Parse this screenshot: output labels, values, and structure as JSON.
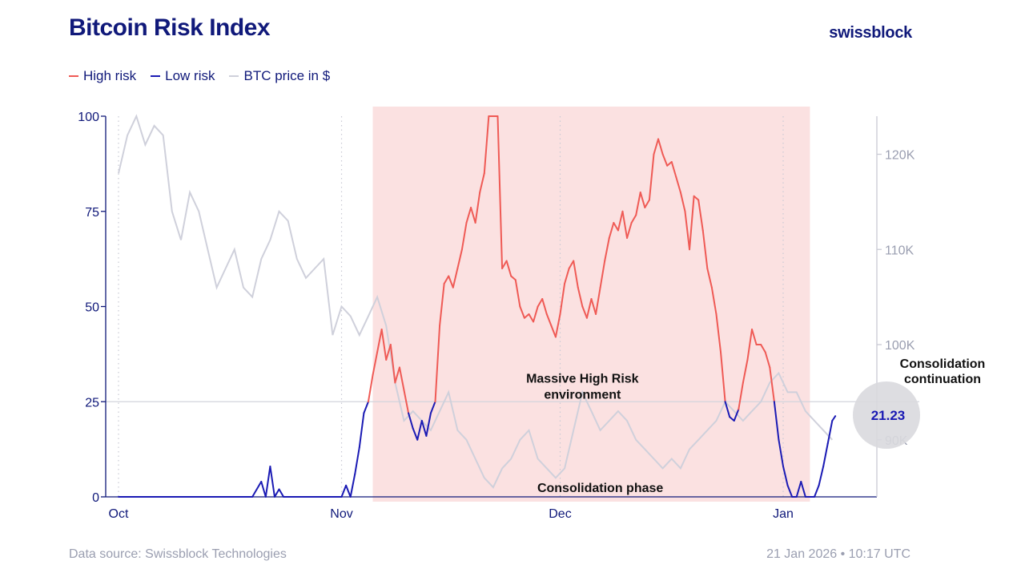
{
  "page": {
    "title": "Bitcoin Risk Index",
    "brand": "swissblock",
    "footer_source": "Data source: Swissblock Technologies",
    "footer_timestamp": "21 Jan 2026 • 10:17 UTC"
  },
  "colors": {
    "title": "#10197a",
    "high_risk": "#ef5a55",
    "low_risk": "#1a1ab4",
    "btc_price": "#cfd0db",
    "highlight_band": "#fbe1e1",
    "right_axis": "#9a9eb0",
    "value_bubble": "#d9d9de"
  },
  "chart_data": {
    "type": "line",
    "title": "Bitcoin Risk Index",
    "legend": {
      "placement": "top-left",
      "entries": [
        "High risk",
        "Low risk",
        "BTC price in $"
      ]
    },
    "x_ticks": [
      "Oct",
      "Nov",
      "Dec",
      "Jan"
    ],
    "y_left": {
      "range": [
        0,
        100
      ],
      "ticks": [
        "0",
        "25",
        "50",
        "75",
        "100"
      ]
    },
    "y_right": {
      "range": [
        84000,
        124000
      ],
      "ticks": [
        "90K",
        "100K",
        "110K",
        "120K"
      ]
    },
    "threshold": 25,
    "series": [
      {
        "name": "Bitcoin Risk Index",
        "points": [
          [
            0,
            0
          ],
          [
            5,
            0
          ],
          [
            10,
            0
          ],
          [
            15,
            0
          ],
          [
            20,
            0
          ],
          [
            25,
            0
          ],
          [
            30,
            0
          ],
          [
            32,
            4
          ],
          [
            33,
            0
          ],
          [
            34,
            8
          ],
          [
            35,
            0
          ],
          [
            36,
            2
          ],
          [
            37,
            0
          ],
          [
            40,
            0
          ],
          [
            45,
            0
          ],
          [
            50,
            0
          ],
          [
            51,
            3
          ],
          [
            52,
            0
          ],
          [
            53,
            6
          ],
          [
            54,
            13
          ],
          [
            55,
            22
          ],
          [
            56,
            25
          ],
          [
            57,
            32
          ],
          [
            58,
            38
          ],
          [
            59,
            44
          ],
          [
            60,
            36
          ],
          [
            61,
            40
          ],
          [
            62,
            30
          ],
          [
            63,
            34
          ],
          [
            64,
            28
          ],
          [
            65,
            22
          ],
          [
            66,
            18
          ],
          [
            67,
            15
          ],
          [
            68,
            20
          ],
          [
            69,
            16
          ],
          [
            70,
            22
          ],
          [
            71,
            25
          ],
          [
            72,
            45
          ],
          [
            73,
            56
          ],
          [
            74,
            58
          ],
          [
            75,
            55
          ],
          [
            76,
            60
          ],
          [
            77,
            65
          ],
          [
            78,
            72
          ],
          [
            79,
            76
          ],
          [
            80,
            72
          ],
          [
            81,
            80
          ],
          [
            82,
            85
          ],
          [
            83,
            100
          ],
          [
            84,
            100
          ],
          [
            85,
            100
          ],
          [
            86,
            60
          ],
          [
            87,
            62
          ],
          [
            88,
            58
          ],
          [
            89,
            57
          ],
          [
            90,
            50
          ],
          [
            91,
            47
          ],
          [
            92,
            48
          ],
          [
            93,
            46
          ],
          [
            94,
            50
          ],
          [
            95,
            52
          ],
          [
            96,
            48
          ],
          [
            97,
            45
          ],
          [
            98,
            42
          ],
          [
            99,
            48
          ],
          [
            100,
            56
          ],
          [
            101,
            60
          ],
          [
            102,
            62
          ],
          [
            103,
            55
          ],
          [
            104,
            50
          ],
          [
            105,
            47
          ],
          [
            106,
            52
          ],
          [
            107,
            48
          ],
          [
            108,
            55
          ],
          [
            109,
            62
          ],
          [
            110,
            68
          ],
          [
            111,
            72
          ],
          [
            112,
            70
          ],
          [
            113,
            75
          ],
          [
            114,
            68
          ],
          [
            115,
            72
          ],
          [
            116,
            74
          ],
          [
            117,
            80
          ],
          [
            118,
            76
          ],
          [
            119,
            78
          ],
          [
            120,
            90
          ],
          [
            121,
            94
          ],
          [
            122,
            90
          ],
          [
            123,
            87
          ],
          [
            124,
            88
          ],
          [
            125,
            84
          ],
          [
            126,
            80
          ],
          [
            127,
            75
          ],
          [
            128,
            65
          ],
          [
            129,
            79
          ],
          [
            130,
            78
          ],
          [
            131,
            70
          ],
          [
            132,
            60
          ],
          [
            133,
            55
          ],
          [
            134,
            48
          ],
          [
            135,
            38
          ],
          [
            136,
            25
          ],
          [
            137,
            21
          ],
          [
            138,
            20
          ],
          [
            139,
            23
          ],
          [
            140,
            30
          ],
          [
            141,
            36
          ],
          [
            142,
            44
          ],
          [
            143,
            40
          ],
          [
            144,
            40
          ],
          [
            145,
            38
          ],
          [
            146,
            34
          ],
          [
            147,
            25
          ],
          [
            148,
            15
          ],
          [
            149,
            8
          ],
          [
            150,
            3
          ],
          [
            151,
            0
          ],
          [
            152,
            0
          ],
          [
            153,
            4
          ],
          [
            154,
            0
          ],
          [
            155,
            0
          ],
          [
            156,
            0
          ],
          [
            157,
            3
          ],
          [
            158,
            8
          ],
          [
            159,
            14
          ],
          [
            160,
            20
          ],
          [
            160.7,
            21.23
          ]
        ]
      },
      {
        "name": "BTC price in $",
        "points": [
          [
            0,
            118000
          ],
          [
            2,
            122000
          ],
          [
            4,
            124000
          ],
          [
            6,
            121000
          ],
          [
            8,
            123000
          ],
          [
            10,
            122000
          ],
          [
            12,
            114000
          ],
          [
            14,
            111000
          ],
          [
            16,
            116000
          ],
          [
            18,
            114000
          ],
          [
            20,
            110000
          ],
          [
            22,
            106000
          ],
          [
            24,
            108000
          ],
          [
            26,
            110000
          ],
          [
            28,
            106000
          ],
          [
            30,
            105000
          ],
          [
            32,
            109000
          ],
          [
            34,
            111000
          ],
          [
            36,
            114000
          ],
          [
            38,
            113000
          ],
          [
            40,
            109000
          ],
          [
            42,
            107000
          ],
          [
            44,
            108000
          ],
          [
            46,
            109000
          ],
          [
            48,
            101000
          ],
          [
            50,
            104000
          ],
          [
            52,
            103000
          ],
          [
            54,
            101000
          ],
          [
            56,
            103000
          ],
          [
            58,
            105000
          ],
          [
            60,
            102000
          ],
          [
            62,
            96000
          ],
          [
            64,
            92000
          ],
          [
            66,
            93000
          ],
          [
            68,
            92000
          ],
          [
            70,
            91000
          ],
          [
            72,
            93000
          ],
          [
            74,
            95000
          ],
          [
            76,
            91000
          ],
          [
            78,
            90000
          ],
          [
            80,
            88000
          ],
          [
            82,
            86000
          ],
          [
            84,
            85000
          ],
          [
            86,
            87000
          ],
          [
            88,
            88000
          ],
          [
            90,
            90000
          ],
          [
            92,
            91000
          ],
          [
            94,
            88000
          ],
          [
            96,
            87000
          ],
          [
            98,
            86000
          ],
          [
            100,
            87000
          ],
          [
            102,
            91000
          ],
          [
            104,
            95000
          ],
          [
            106,
            93000
          ],
          [
            108,
            91000
          ],
          [
            110,
            92000
          ],
          [
            112,
            93000
          ],
          [
            114,
            92000
          ],
          [
            116,
            90000
          ],
          [
            118,
            89000
          ],
          [
            120,
            88000
          ],
          [
            122,
            87000
          ],
          [
            124,
            88000
          ],
          [
            126,
            87000
          ],
          [
            128,
            89000
          ],
          [
            130,
            90000
          ],
          [
            132,
            91000
          ],
          [
            134,
            92000
          ],
          [
            136,
            94000
          ],
          [
            138,
            93000
          ],
          [
            140,
            92000
          ],
          [
            142,
            93000
          ],
          [
            144,
            94000
          ],
          [
            146,
            96000
          ],
          [
            148,
            97000
          ],
          [
            150,
            95000
          ],
          [
            152,
            95000
          ],
          [
            154,
            93000
          ],
          [
            156,
            92000
          ],
          [
            158,
            91000
          ],
          [
            160,
            90000
          ]
        ]
      }
    ],
    "x_range": [
      0,
      170
    ],
    "highlight_band": {
      "x_range": [
        57,
        155
      ]
    },
    "annotations": [
      {
        "text": "Massive High Risk environment",
        "x": 104,
        "y": 30
      },
      {
        "text": "Consolidation phase",
        "x": 108,
        "y": 2
      },
      {
        "text": "Consolidation continuation",
        "x": 181,
        "y": 32
      }
    ],
    "latest_value": "21.23"
  }
}
